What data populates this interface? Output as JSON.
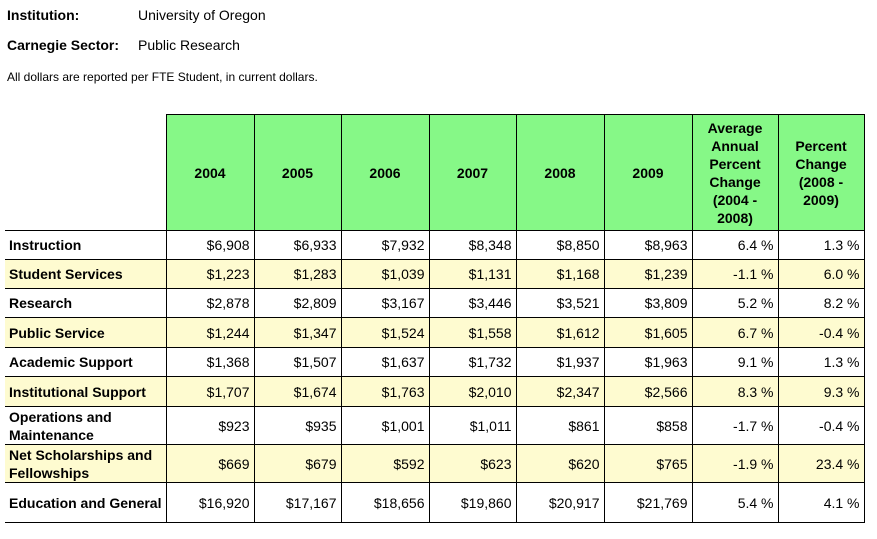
{
  "institution": {
    "label": "Institution:",
    "value": "University of Oregon"
  },
  "sector": {
    "label": "Carnegie Sector:",
    "value": "Public Research"
  },
  "note": "All dollars are reported per FTE Student, in current dollars.",
  "table": {
    "headers": [
      "2004",
      "2005",
      "2006",
      "2007",
      "2008",
      "2009",
      "Average Annual Percent Change (2004 - 2008)",
      "Percent Change (2008 - 2009)"
    ],
    "rows": [
      {
        "label": "Instruction",
        "cells": [
          "$6,908",
          "$6,933",
          "$7,932",
          "$8,348",
          "$8,850",
          "$8,963",
          "6.4 %",
          "1.3 %"
        ]
      },
      {
        "label": "Student Services",
        "cells": [
          "$1,223",
          "$1,283",
          "$1,039",
          "$1,131",
          "$1,168",
          "$1,239",
          "-1.1 %",
          "6.0 %"
        ]
      },
      {
        "label": "Research",
        "cells": [
          "$2,878",
          "$2,809",
          "$3,167",
          "$3,446",
          "$3,521",
          "$3,809",
          "5.2 %",
          "8.2 %"
        ]
      },
      {
        "label": "Public Service",
        "cells": [
          "$1,244",
          "$1,347",
          "$1,524",
          "$1,558",
          "$1,612",
          "$1,605",
          "6.7 %",
          "-0.4 %"
        ]
      },
      {
        "label": "Academic Support",
        "cells": [
          "$1,368",
          "$1,507",
          "$1,637",
          "$1,732",
          "$1,937",
          "$1,963",
          "9.1 %",
          "1.3 %"
        ]
      },
      {
        "label": "Institutional Support",
        "cells": [
          "$1,707",
          "$1,674",
          "$1,763",
          "$2,010",
          "$2,347",
          "$2,566",
          "8.3 %",
          "9.3 %"
        ]
      },
      {
        "label": "Operations and Maintenance",
        "cells": [
          "$923",
          "$935",
          "$1,001",
          "$1,011",
          "$861",
          "$858",
          "-1.7 %",
          "-0.4 %"
        ]
      },
      {
        "label": "Net Scholarships and Fellowships",
        "cells": [
          "$669",
          "$679",
          "$592",
          "$623",
          "$620",
          "$765",
          "-1.9 %",
          "23.4 %"
        ]
      },
      {
        "label": "Education and General",
        "cells": [
          "$16,920",
          "$17,167",
          "$18,656",
          "$19,860",
          "$20,917",
          "$21,769",
          "5.4 %",
          "4.1 %"
        ]
      }
    ]
  }
}
